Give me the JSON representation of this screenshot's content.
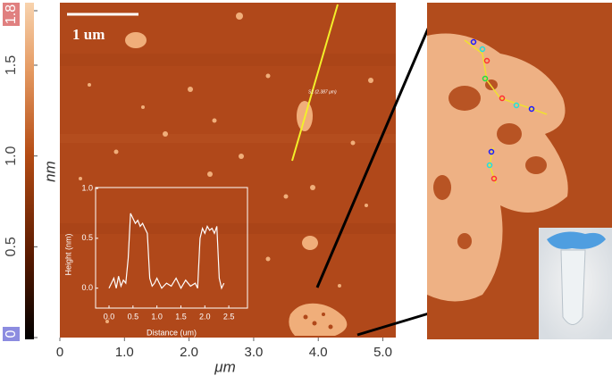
{
  "chart_data": [
    {
      "type": "image",
      "xlim": [
        0,
        5.2
      ],
      "xticks": [
        0,
        {
          "value": 1,
          "label": "1.0"
        },
        {
          "value": 2,
          "label": "2.0"
        },
        {
          "value": 3,
          "label": "3.0"
        },
        {
          "value": 4,
          "label": "4.0"
        },
        {
          "value": 5,
          "label": "5.0"
        }
      ],
      "xlabel": "μm",
      "zlim": [
        0,
        1.8
      ],
      "zticks": [
        0,
        0.5,
        {
          "value": 1,
          "label": "1.0"
        },
        1.5,
        1.8
      ],
      "zlabel": "nm",
      "scale_bar": "1 um",
      "profile_label": "S1 (2.387 μm)"
    },
    {
      "type": "line",
      "xlabel": "Distance (um)",
      "ylabel": "Height (nm)",
      "color": "#ffffff",
      "xlim": [
        -0.28,
        2.89
      ],
      "ylim": [
        -0.2,
        1.0
      ],
      "xticks": [
        {
          "value": 0,
          "label": "0.0"
        },
        0.5,
        {
          "value": 1,
          "label": "1.0"
        },
        1.5,
        {
          "value": 2,
          "label": "2.0"
        },
        2.5
      ],
      "yticks": [
        {
          "value": 0,
          "label": "0.0"
        },
        0.5,
        {
          "value": 1,
          "label": "1.0"
        }
      ],
      "x": [
        0,
        0.05,
        0.1,
        0.15,
        0.2,
        0.25,
        0.3,
        0.35,
        0.4,
        0.45,
        0.5,
        0.55,
        0.6,
        0.65,
        0.7,
        0.75,
        0.8,
        0.85,
        0.9,
        0.95,
        1.0,
        1.1,
        1.2,
        1.3,
        1.4,
        1.5,
        1.6,
        1.7,
        1.8,
        1.85,
        1.9,
        1.95,
        2.0,
        2.05,
        2.1,
        2.15,
        2.2,
        2.25,
        2.3,
        2.35,
        2.4
      ],
      "values": [
        0,
        0.05,
        0.1,
        0,
        0.12,
        0.02,
        0.08,
        0.05,
        0.3,
        0.75,
        0.7,
        0.65,
        0.68,
        0.62,
        0.65,
        0.6,
        0.55,
        0.1,
        0.02,
        0.05,
        0.1,
        0.0,
        0.05,
        0.02,
        0.1,
        0.0,
        0.08,
        0.02,
        0.05,
        0.0,
        0.5,
        0.6,
        0.55,
        0.62,
        0.58,
        0.6,
        0.55,
        0.62,
        0.1,
        0.0,
        0.05
      ]
    }
  ]
}
